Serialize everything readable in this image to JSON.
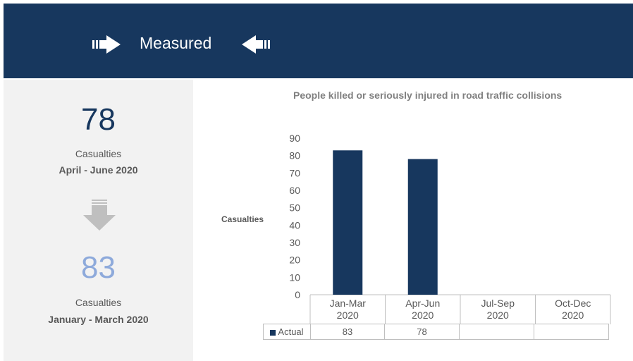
{
  "header": {
    "title": "Measured"
  },
  "summary": {
    "current_value": "78",
    "current_label": "Casualties",
    "current_period": "April - June 2020",
    "previous_value": "83",
    "previous_label": "Casualties",
    "previous_period": "January - March 2020"
  },
  "colors": {
    "header_bg": "#17375e",
    "bar": "#17375e",
    "previous_value": "#8eaadb",
    "panel_bg": "#f2f2f2"
  },
  "icons": [
    "arrow-right-icon",
    "arrow-left-icon",
    "arrow-down-icon"
  ],
  "chart_data": {
    "type": "bar",
    "title": "People killed or seriously injured in road traffic collisions",
    "ylabel": "Casualties",
    "categories": [
      [
        "Jan-Mar",
        "2020"
      ],
      [
        "Apr-Jun",
        "2020"
      ],
      [
        "Jul-Sep",
        "2020"
      ],
      [
        "Oct-Dec",
        "2020"
      ]
    ],
    "series": [
      {
        "name": "Actual",
        "values": [
          83,
          78,
          null,
          null
        ]
      }
    ],
    "table_values": [
      "83",
      "78",
      "",
      ""
    ],
    "ylim": [
      0,
      90
    ],
    "yticks": [
      0,
      10,
      20,
      30,
      40,
      50,
      60,
      70,
      80,
      90
    ],
    "grid": false,
    "legend": "data-table"
  }
}
